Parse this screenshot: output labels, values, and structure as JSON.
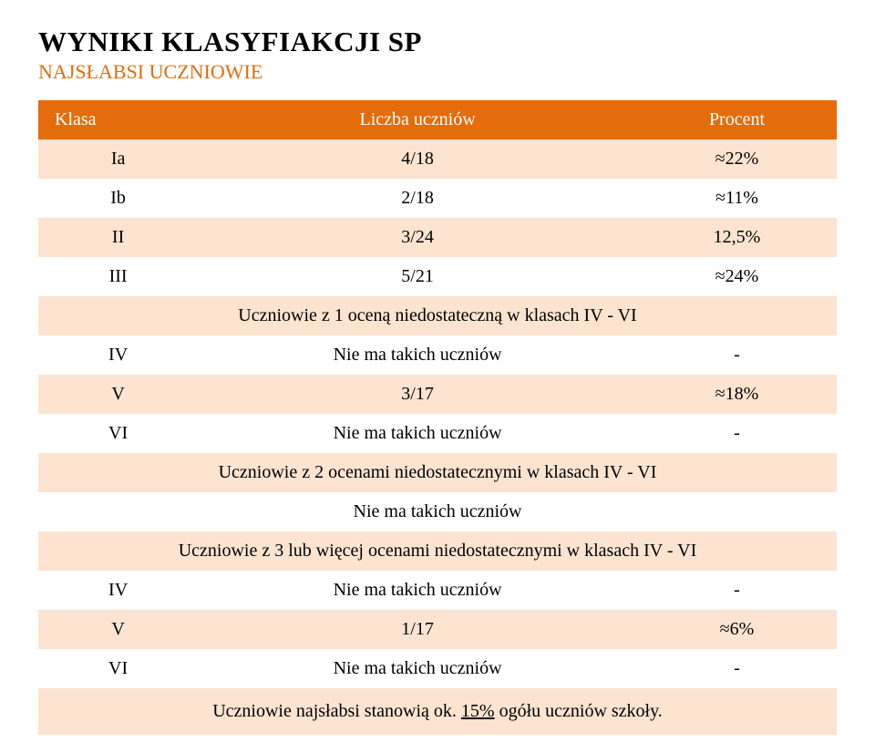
{
  "title": "WYNIKI KLASYFIAKCJI SP",
  "subtitle": "NAJSŁABSI UCZNIOWIE",
  "subtitle_color": "#e46c0a",
  "columns": [
    "Klasa",
    "Liczba uczniów",
    "Procent"
  ],
  "rows": [
    {
      "type": "data",
      "cells": [
        "Ia",
        "4/18",
        "≈22%"
      ]
    },
    {
      "type": "data",
      "cells": [
        "Ib",
        "2/18",
        "≈11%"
      ]
    },
    {
      "type": "data",
      "cells": [
        "II",
        "3/24",
        "12,5%"
      ]
    },
    {
      "type": "data",
      "cells": [
        "III",
        "5/21",
        "≈24%"
      ]
    },
    {
      "type": "span",
      "text": "Uczniowie z 1 oceną niedostateczną w klasach IV - VI"
    },
    {
      "type": "data",
      "cells": [
        "IV",
        "Nie ma takich uczniów",
        "-"
      ]
    },
    {
      "type": "data",
      "cells": [
        "V",
        "3/17",
        "≈18%"
      ]
    },
    {
      "type": "data",
      "cells": [
        "VI",
        "Nie ma takich uczniów",
        "-"
      ]
    },
    {
      "type": "span",
      "text": "Uczniowie z 2 ocenami niedostatecznymi w klasach IV - VI"
    },
    {
      "type": "span",
      "text": "Nie ma takich uczniów"
    },
    {
      "type": "span",
      "text": "Uczniowie z 3 lub więcej ocenami niedostatecznymi w klasach IV - VI"
    },
    {
      "type": "data",
      "cells": [
        "IV",
        "Nie ma takich uczniów",
        "-"
      ]
    },
    {
      "type": "data",
      "cells": [
        "V",
        "1/17",
        "≈6%"
      ]
    },
    {
      "type": "data",
      "cells": [
        "VI",
        "Nie ma takich uczniów",
        "-"
      ]
    }
  ],
  "footer_prefix": "Uczniowie najsłabsi stanowią ok. ",
  "footer_underlined": "15%",
  "footer_suffix": " ogółu uczniów szkoły.",
  "colors": {
    "header_bg": "#e46c0a",
    "header_text": "#ffffff",
    "row_bg": "#fde4d0",
    "row_alt_bg": "#ffffff",
    "footer_bg": "#fde4d0",
    "title_color": "#000000",
    "subtitle_color": "#e46c0a"
  },
  "fontsize": {
    "title": 31,
    "subtitle": 22,
    "cell": 20
  }
}
